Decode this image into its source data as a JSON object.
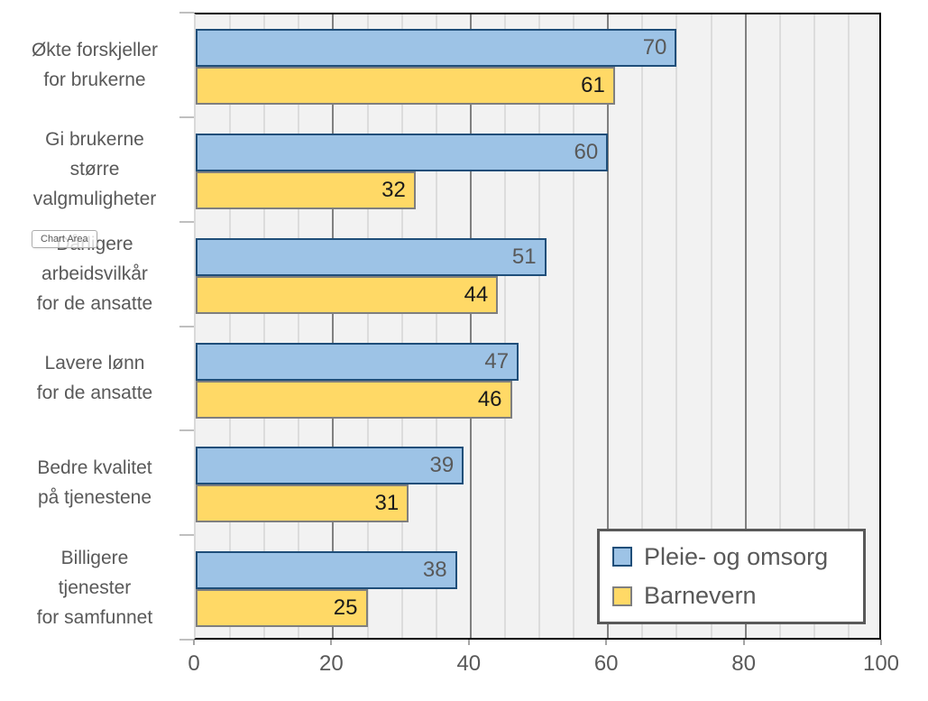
{
  "tooltip": {
    "label": "Chart Area"
  },
  "chart_data": {
    "type": "bar",
    "orientation": "horizontal",
    "title": "",
    "xlabel": "",
    "ylabel": "",
    "categories": [
      "Økte forskjeller\nfor brukerne",
      "Gi brukerne\nstørre\nvalgmuligheter",
      "Dårligere\narbeidsvilkår\nfor de ansatte",
      "Lavere lønn\nfor de ansatte",
      "Bedre kvalitet\npå tjenestene",
      "Billigere\ntjenester\nfor samfunnet"
    ],
    "series": [
      {
        "name": "Pleie- og omsorg",
        "values": [
          70,
          60,
          51,
          47,
          39,
          38
        ],
        "fill_color": "#9DC3E6",
        "border_color": "#1F4E79",
        "label_color": "#595959"
      },
      {
        "name": "Barnevern",
        "values": [
          61,
          32,
          44,
          46,
          31,
          25
        ],
        "fill_color": "#FFD966",
        "border_color": "#7F7F7F",
        "label_color": "#1A1A1A"
      }
    ],
    "xlim": [
      0,
      100
    ],
    "x_ticks": [
      0,
      20,
      40,
      60,
      80,
      100
    ],
    "minor_grid_step": 5,
    "major_grid_step": 20,
    "grid": true,
    "data_labels": "inside-end",
    "legend_position": "bottom-right-inside",
    "plot_bg_color": "#F2F2F2",
    "minor_grid_color": "#DCDCDC",
    "major_grid_color": "#808080",
    "axis_text_color": "#595959"
  }
}
